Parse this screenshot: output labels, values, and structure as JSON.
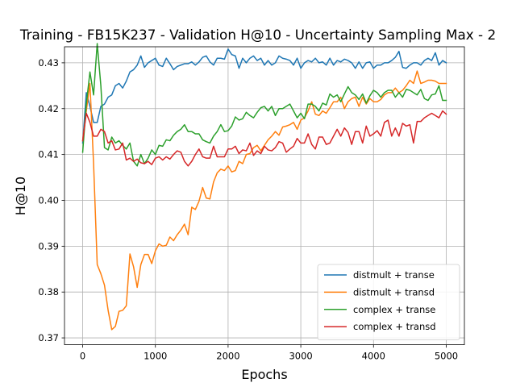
{
  "chart_data": {
    "type": "line",
    "title": "Training - FB15K237 - Validation H@10 - Uncertainty Sampling Max - 2",
    "xlabel": "Epochs",
    "ylabel": "H@10",
    "xlim": [
      -250,
      5250
    ],
    "ylim": [
      0.3685,
      0.4335
    ],
    "xticks": [
      0,
      1000,
      2000,
      3000,
      4000,
      5000
    ],
    "yticks": [
      0.37,
      0.38,
      0.39,
      0.4,
      0.41,
      0.42,
      0.43
    ],
    "ytick_labels": [
      "0.37",
      "0.38",
      "0.39",
      "0.40",
      "0.41",
      "0.42",
      "0.43"
    ],
    "grid": true,
    "legend_position": "lower right",
    "series": [
      {
        "name": "distmult + transe",
        "color": "#1f77b4",
        "x": [
          0,
          50,
          100,
          150,
          200,
          250,
          300,
          350,
          400,
          450,
          500,
          550,
          600,
          650,
          700,
          750,
          800,
          850,
          900,
          950,
          1000,
          1050,
          1100,
          1150,
          1200,
          1250,
          1300,
          1350,
          1400,
          1450,
          1500,
          1550,
          1600,
          1650,
          1700,
          1750,
          1800,
          1850,
          1900,
          1950,
          2000,
          2050,
          2100,
          2150,
          2200,
          2250,
          2300,
          2350,
          2400,
          2450,
          2500,
          2550,
          2600,
          2650,
          2700,
          2750,
          2800,
          2850,
          2900,
          2950,
          3000,
          3050,
          3100,
          3150,
          3200,
          3250,
          3300,
          3350,
          3400,
          3450,
          3500,
          3550,
          3600,
          3650,
          3700,
          3750,
          3800,
          3850,
          3900,
          3950,
          4000,
          4050,
          4100,
          4150,
          4200,
          4250,
          4300,
          4350,
          4400,
          4450,
          4500,
          4550,
          4600,
          4650,
          4700,
          4750,
          4800,
          4850,
          4900,
          4950,
          5000
        ],
        "y": [
          0.4125,
          0.4235,
          0.4205,
          0.417,
          0.417,
          0.4205,
          0.421,
          0.4225,
          0.423,
          0.425,
          0.4255,
          0.4245,
          0.426,
          0.428,
          0.4285,
          0.4295,
          0.4315,
          0.429,
          0.43,
          0.4305,
          0.431,
          0.4295,
          0.4292,
          0.431,
          0.4298,
          0.4285,
          0.4292,
          0.4295,
          0.4298,
          0.4298,
          0.4302,
          0.4295,
          0.4302,
          0.4312,
          0.4315,
          0.4302,
          0.4295,
          0.431,
          0.431,
          0.4308,
          0.433,
          0.4318,
          0.4315,
          0.4288,
          0.431,
          0.43,
          0.431,
          0.4315,
          0.4305,
          0.431,
          0.4295,
          0.4305,
          0.4295,
          0.43,
          0.4315,
          0.431,
          0.4308,
          0.4305,
          0.4295,
          0.431,
          0.4288,
          0.43,
          0.4305,
          0.4302,
          0.431,
          0.43,
          0.4302,
          0.4295,
          0.431,
          0.4295,
          0.4305,
          0.4302,
          0.4308,
          0.4305,
          0.43,
          0.4288,
          0.4302,
          0.4288,
          0.43,
          0.4302,
          0.4288,
          0.4295,
          0.4295,
          0.43,
          0.43,
          0.4305,
          0.4312,
          0.4325,
          0.429,
          0.4288,
          0.4295,
          0.43,
          0.43,
          0.4295,
          0.4305,
          0.431,
          0.4305,
          0.4322,
          0.4295,
          0.4305,
          0.43
        ]
      },
      {
        "name": "distmult + transd",
        "color": "#ff7f0e",
        "x": [
          0,
          50,
          100,
          150,
          200,
          250,
          300,
          350,
          400,
          450,
          500,
          550,
          600,
          650,
          700,
          750,
          800,
          850,
          900,
          950,
          1000,
          1050,
          1100,
          1150,
          1200,
          1250,
          1300,
          1350,
          1400,
          1450,
          1500,
          1550,
          1600,
          1650,
          1700,
          1750,
          1800,
          1850,
          1900,
          1950,
          2000,
          2050,
          2100,
          2150,
          2200,
          2250,
          2300,
          2350,
          2400,
          2450,
          2500,
          2550,
          2600,
          2650,
          2700,
          2750,
          2800,
          2850,
          2900,
          2950,
          3000,
          3050,
          3100,
          3150,
          3200,
          3250,
          3300,
          3350,
          3400,
          3450,
          3500,
          3550,
          3600,
          3650,
          3700,
          3750,
          3800,
          3850,
          3900,
          3950,
          4000,
          4050,
          4100,
          4150,
          4200,
          4250,
          4300,
          4350,
          4400,
          4450,
          4500,
          4550,
          4600,
          4650,
          4700,
          4750,
          4800,
          4850,
          4900,
          4950,
          5000
        ],
        "y": [
          0.413,
          0.4195,
          0.4255,
          0.408,
          0.386,
          0.384,
          0.3815,
          0.376,
          0.3718,
          0.3725,
          0.3758,
          0.376,
          0.377,
          0.3883,
          0.3855,
          0.381,
          0.386,
          0.3882,
          0.3882,
          0.3862,
          0.389,
          0.3905,
          0.39,
          0.3902,
          0.392,
          0.3912,
          0.3925,
          0.3935,
          0.3948,
          0.3925,
          0.3985,
          0.398,
          0.3998,
          0.4028,
          0.4005,
          0.4003,
          0.404,
          0.406,
          0.4068,
          0.4065,
          0.4075,
          0.4062,
          0.4065,
          0.4085,
          0.408,
          0.41,
          0.4102,
          0.4115,
          0.412,
          0.4108,
          0.412,
          0.4132,
          0.414,
          0.415,
          0.4142,
          0.416,
          0.4162,
          0.4165,
          0.417,
          0.4155,
          0.4175,
          0.418,
          0.4195,
          0.4215,
          0.4188,
          0.4185,
          0.4195,
          0.419,
          0.4202,
          0.4215,
          0.4215,
          0.4225,
          0.42,
          0.4215,
          0.4222,
          0.4225,
          0.4205,
          0.4225,
          0.421,
          0.4222,
          0.4215,
          0.4215,
          0.422,
          0.423,
          0.4235,
          0.4235,
          0.4245,
          0.4235,
          0.424,
          0.425,
          0.4262,
          0.4255,
          0.4282,
          0.4255,
          0.4258,
          0.4262,
          0.4262,
          0.426,
          0.4255,
          0.4255,
          0.4255
        ]
      },
      {
        "name": "complex + transe",
        "color": "#2ca02c",
        "x": [
          0,
          50,
          100,
          150,
          200,
          250,
          300,
          350,
          400,
          450,
          500,
          550,
          600,
          650,
          700,
          750,
          800,
          850,
          900,
          950,
          1000,
          1050,
          1100,
          1150,
          1200,
          1250,
          1300,
          1350,
          1400,
          1450,
          1500,
          1550,
          1600,
          1650,
          1700,
          1750,
          1800,
          1850,
          1900,
          1950,
          2000,
          2050,
          2100,
          2150,
          2200,
          2250,
          2300,
          2350,
          2400,
          2450,
          2500,
          2550,
          2600,
          2650,
          2700,
          2750,
          2800,
          2850,
          2900,
          2950,
          3000,
          3050,
          3100,
          3150,
          3200,
          3250,
          3300,
          3350,
          3400,
          3450,
          3500,
          3550,
          3600,
          3650,
          3700,
          3750,
          3800,
          3850,
          3900,
          3950,
          4000,
          4050,
          4100,
          4150,
          4200,
          4250,
          4300,
          4350,
          4400,
          4450,
          4500,
          4550,
          4600,
          4650,
          4700,
          4750,
          4800,
          4850,
          4900,
          4950,
          5000
        ],
        "y": [
          0.4105,
          0.421,
          0.428,
          0.423,
          0.4342,
          0.425,
          0.4115,
          0.411,
          0.4138,
          0.4125,
          0.413,
          0.412,
          0.4112,
          0.4125,
          0.4085,
          0.4075,
          0.41,
          0.408,
          0.4092,
          0.411,
          0.41,
          0.412,
          0.4118,
          0.4132,
          0.413,
          0.4142,
          0.415,
          0.4155,
          0.4165,
          0.415,
          0.415,
          0.4145,
          0.4145,
          0.4132,
          0.4128,
          0.4125,
          0.414,
          0.415,
          0.4165,
          0.415,
          0.4152,
          0.4162,
          0.4182,
          0.4175,
          0.4178,
          0.4192,
          0.4185,
          0.418,
          0.4192,
          0.4202,
          0.4205,
          0.4195,
          0.4205,
          0.4185,
          0.42,
          0.42,
          0.4205,
          0.421,
          0.4195,
          0.418,
          0.419,
          0.4178,
          0.421,
          0.421,
          0.4205,
          0.4195,
          0.4212,
          0.4208,
          0.4232,
          0.4225,
          0.423,
          0.4215,
          0.4232,
          0.4248,
          0.4235,
          0.423,
          0.422,
          0.4232,
          0.4212,
          0.4228,
          0.424,
          0.4235,
          0.4225,
          0.4235,
          0.424,
          0.424,
          0.4225,
          0.4235,
          0.4225,
          0.4242,
          0.424,
          0.4235,
          0.423,
          0.4242,
          0.4222,
          0.4218,
          0.423,
          0.4232,
          0.425,
          0.4218,
          0.4218
        ]
      },
      {
        "name": "complex + transd",
        "color": "#d62728",
        "x": [
          0,
          50,
          100,
          150,
          200,
          250,
          300,
          350,
          400,
          450,
          500,
          550,
          600,
          650,
          700,
          750,
          800,
          850,
          900,
          950,
          1000,
          1050,
          1100,
          1150,
          1200,
          1250,
          1300,
          1350,
          1400,
          1450,
          1500,
          1550,
          1600,
          1650,
          1700,
          1750,
          1800,
          1850,
          1900,
          1950,
          2000,
          2050,
          2100,
          2150,
          2200,
          2250,
          2300,
          2350,
          2400,
          2450,
          2500,
          2550,
          2600,
          2650,
          2700,
          2750,
          2800,
          2850,
          2900,
          2950,
          3000,
          3050,
          3100,
          3150,
          3200,
          3250,
          3300,
          3350,
          3400,
          3450,
          3500,
          3550,
          3600,
          3650,
          3700,
          3750,
          3800,
          3850,
          3900,
          3950,
          4000,
          4050,
          4100,
          4150,
          4200,
          4250,
          4300,
          4350,
          4400,
          4450,
          4500,
          4550,
          4600,
          4650,
          4700,
          4750,
          4800,
          4850,
          4900,
          4950,
          5000
        ],
        "y": [
          0.413,
          0.419,
          0.417,
          0.414,
          0.414,
          0.4155,
          0.415,
          0.4125,
          0.413,
          0.411,
          0.4112,
          0.4125,
          0.4088,
          0.4092,
          0.4085,
          0.409,
          0.4082,
          0.408,
          0.4085,
          0.4078,
          0.4092,
          0.4095,
          0.4088,
          0.4095,
          0.409,
          0.41,
          0.4108,
          0.4105,
          0.4085,
          0.4075,
          0.4085,
          0.41,
          0.4112,
          0.4095,
          0.4092,
          0.4092,
          0.4118,
          0.4095,
          0.4095,
          0.4095,
          0.4112,
          0.4112,
          0.4118,
          0.4102,
          0.411,
          0.4108,
          0.4125,
          0.4098,
          0.4108,
          0.4102,
          0.4118,
          0.411,
          0.4108,
          0.4115,
          0.4128,
          0.4125,
          0.4105,
          0.4112,
          0.4118,
          0.4135,
          0.4125,
          0.4125,
          0.4145,
          0.4122,
          0.4112,
          0.4138,
          0.4138,
          0.4122,
          0.4125,
          0.414,
          0.4155,
          0.414,
          0.4158,
          0.4148,
          0.4122,
          0.415,
          0.415,
          0.4125,
          0.4162,
          0.414,
          0.4145,
          0.4152,
          0.414,
          0.417,
          0.4175,
          0.414,
          0.4158,
          0.414,
          0.4168,
          0.4162,
          0.4165,
          0.4125,
          0.4172,
          0.4172,
          0.418,
          0.4185,
          0.419,
          0.4185,
          0.418,
          0.4195,
          0.4188
        ]
      }
    ]
  }
}
